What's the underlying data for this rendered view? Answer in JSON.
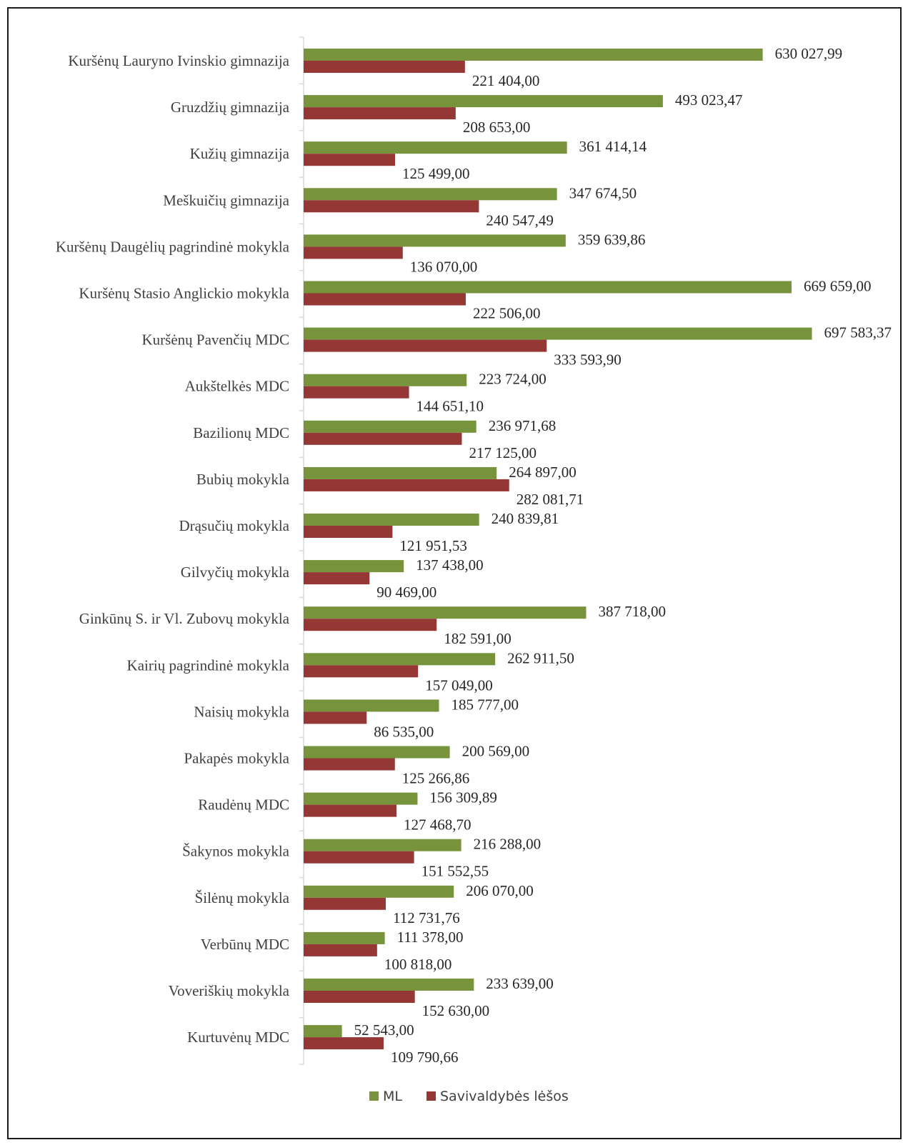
{
  "chart_data": {
    "type": "bar",
    "orientation": "horizontal",
    "categories": [
      "Kuršėnų Lauryno  Ivinskio gimnazija",
      "Gruzdžių gimnazija",
      "Kužių gimnazija",
      "Meškuičių gimnazija",
      "Kuršėnų Daugėlių pagrindinė mokykla",
      "Kuršėnų Stasio Anglickio mokykla",
      "Kuršėnų Pavenčių MDC",
      "Aukštelkės MDC",
      "Bazilionų MDC",
      "Bubių mokykla",
      "Drąsučių mokykla",
      "Gilvyčių mokykla",
      "Ginkūnų S. ir Vl. Zubovų mokykla",
      "Kairių pagrindinė mokykla",
      "Naisių mokykla",
      "Pakapės  mokykla",
      "Raudėnų MDC",
      "Šakynos mokykla",
      "Šilėnų mokykla",
      "Verbūnų MDC",
      "Voveriškių mokykla",
      "Kurtuvėnų MDC"
    ],
    "series": [
      {
        "name": "ML",
        "color": "#77933c",
        "values": [
          630027.99,
          493023.47,
          361414.14,
          347674.5,
          359639.86,
          669659.0,
          697583.37,
          223724.0,
          236971.68,
          264897.0,
          240839.81,
          137438.0,
          387718.0,
          262911.5,
          185777.0,
          200569.0,
          156309.89,
          216288.0,
          206070.0,
          111378.0,
          233639.0,
          52543.0
        ],
        "labels": [
          "630 027,99",
          "493 023,47",
          "361 414,14",
          "347 674,50",
          "359 639,86",
          "669 659,00",
          "697 583,37",
          "223 724,00",
          "236 971,68",
          "264 897,00",
          "240 839,81",
          "137 438,00",
          "387 718,00",
          "262 911,50",
          "185 777,00",
          "200 569,00",
          "156 309,89",
          "216 288,00",
          "206 070,00",
          "111 378,00",
          "233 639,00",
          "52 543,00"
        ]
      },
      {
        "name": "Savivaldybės lėšos",
        "color": "#953735",
        "values": [
          221404.0,
          208653.0,
          125499.0,
          240547.49,
          136070.0,
          222506.0,
          333593.9,
          144651.1,
          217125.0,
          282081.71,
          121951.53,
          90469.0,
          182591.0,
          157049.0,
          86535.0,
          125266.86,
          127468.7,
          151552.55,
          112731.76,
          100818.0,
          152630.0,
          109790.66
        ],
        "labels": [
          "221 404,00",
          "208 653,00",
          "125 499,00",
          "240 547,49",
          "136 070,00",
          "222 506,00",
          "333 593,90",
          "144 651,10",
          "217 125,00",
          "282 081,71",
          "121 951,53",
          "90 469,00",
          "182 591,00",
          "157 049,00",
          "86 535,00",
          "125 266,86",
          "127 468,70",
          "151 552,55",
          "112 731,76",
          "100 818,00",
          "152 630,00",
          "109 790,66"
        ]
      }
    ],
    "xlim": [
      0,
      700000
    ],
    "grid": false,
    "legend_position": "bottom"
  }
}
